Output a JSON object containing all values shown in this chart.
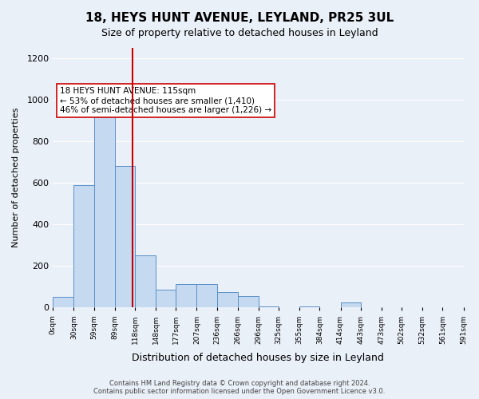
{
  "title": "18, HEYS HUNT AVENUE, LEYLAND, PR25 3UL",
  "subtitle": "Size of property relative to detached houses in Leyland",
  "xlabel": "Distribution of detached houses by size in Leyland",
  "ylabel": "Number of detached properties",
  "bar_color": "#c5d9f0",
  "bar_edge_color": "#5a90c8",
  "background_color": "#eaf0f8",
  "plot_bg_color": "#eaf0f8",
  "grid_color": "#ffffff",
  "property_line_value": 115,
  "property_line_color": "#cc0000",
  "annotation_text": "18 HEYS HUNT AVENUE: 115sqm\n← 53% of detached houses are smaller (1,410)\n46% of semi-detached houses are larger (1,226) →",
  "annotation_box_color": "#ffffff",
  "annotation_box_edge": "#cc0000",
  "footer_text": "Contains HM Land Registry data © Crown copyright and database right 2024.\nContains public sector information licensed under the Open Government Licence v3.0.",
  "bin_edges": [
    0,
    30,
    59,
    89,
    118,
    148,
    177,
    207,
    236,
    266,
    296,
    325,
    355,
    384,
    414,
    443,
    473,
    502,
    532,
    561,
    591
  ],
  "bin_labels": [
    "0sqm",
    "30sqm",
    "59sqm",
    "89sqm",
    "118sqm",
    "148sqm",
    "177sqm",
    "207sqm",
    "236sqm",
    "266sqm",
    "296sqm",
    "325sqm",
    "355sqm",
    "384sqm",
    "414sqm",
    "443sqm",
    "473sqm",
    "502sqm",
    "532sqm",
    "561sqm",
    "591sqm"
  ],
  "counts": [
    50,
    590,
    930,
    680,
    250,
    85,
    115,
    115,
    75,
    55,
    5,
    0,
    5,
    0,
    25,
    0,
    0,
    0,
    0,
    0
  ],
  "ylim": [
    0,
    1250
  ],
  "yticks": [
    0,
    200,
    400,
    600,
    800,
    1000,
    1200
  ]
}
